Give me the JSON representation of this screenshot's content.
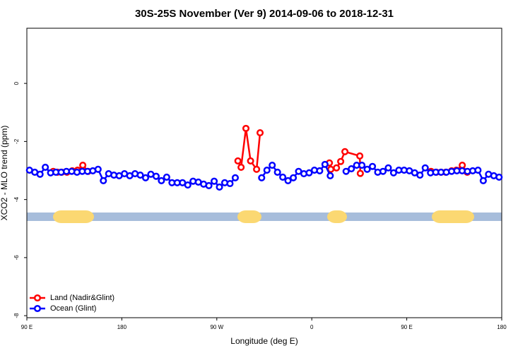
{
  "chart_data": {
    "type": "line",
    "title": "30S-25S November (Ver 9)   2014-09-06 to 2018-12-31",
    "xlabel": "Longitude (deg E)",
    "ylabel": "XCO2 - MLO trend (ppm)",
    "xlim": [
      90,
      540
    ],
    "xticks": [
      {
        "value": 90,
        "label": "90 E"
      },
      180,
      {
        "value": 270,
        "label": "90 W"
      },
      {
        "value": 360,
        "label": "0"
      },
      {
        "value": 450,
        "label": "90 E"
      },
      {
        "value": 540,
        "label": "180"
      }
    ],
    "ylim": [
      -8.07,
      1.9
    ],
    "yticks": [
      -8,
      -6,
      -4,
      -2,
      0
    ],
    "legend": "bottom-left",
    "series": [
      {
        "name": "Land (Nadir&Glint)",
        "color": "#ff0000",
        "x": [
          115,
          119,
          123,
          128,
          133,
          138,
          143,
          148,
          220,
          290,
          293,
          297.6,
          302,
          307.7,
          311,
          340,
          376.7,
          378,
          383.4,
          387.4,
          391.4,
          405.5,
          406,
          440,
          473,
          478,
          482.5,
          487,
          492.5,
          497,
          502.6,
          507.3
        ],
        "values": [
          -3.03,
          -3.06,
          -3.06,
          -3.06,
          -3.01,
          -2.99,
          -2.82,
          -3.03,
          null,
          -2.67,
          -2.89,
          -1.55,
          -2.67,
          -2.96,
          -1.7,
          null,
          -2.74,
          -2.96,
          -2.91,
          -2.69,
          -2.35,
          -2.5,
          -3.1,
          null,
          -3.03,
          -3.06,
          -3.06,
          -3.06,
          -3.01,
          -2.99,
          -2.82,
          -3.06
        ]
      },
      {
        "name": "Ocean (Glint)",
        "color": "#0000ff",
        "x": [
          92.5,
          97.5,
          102.5,
          107.5,
          112.5,
          117.5,
          122.5,
          127.5,
          132.5,
          137.5,
          142.5,
          147.5,
          152.5,
          157.5,
          162.5,
          167.5,
          172.5,
          177.5,
          182.5,
          187.5,
          192.5,
          197.5,
          202.5,
          207.5,
          212.5,
          217.5,
          222.5,
          227.5,
          232.5,
          237.5,
          242.5,
          247.5,
          252.5,
          257.5,
          262.5,
          267.5,
          272.5,
          277.5,
          282.5,
          287.5,
          292.5,
          297.5,
          302.5,
          307.5,
          312.5,
          317.5,
          322.5,
          327.5,
          332.5,
          337.5,
          342.5,
          347.5,
          352.5,
          357.5,
          362.5,
          367.5,
          372.5,
          377.5,
          382.5,
          387.5,
          392.5,
          397.5,
          402.5,
          407.5,
          412.5,
          417.5,
          422.5,
          427.5,
          432.5,
          437.5,
          442.5,
          447.5,
          452.5,
          457.5,
          462.5,
          467.5,
          472.5,
          477.5,
          482.5,
          487.5,
          492.5,
          497.5,
          502.5,
          507.5,
          512.5,
          517.5,
          522.5,
          527.5,
          532.5,
          537.5
        ],
        "values": [
          -2.99,
          -3.06,
          -3.13,
          -2.89,
          -3.08,
          -3.06,
          -3.06,
          -3.03,
          -3.03,
          -3.06,
          -3.03,
          -3.03,
          -3.01,
          -2.96,
          -3.35,
          -3.11,
          -3.16,
          -3.18,
          -3.11,
          -3.18,
          -3.11,
          -3.16,
          -3.25,
          -3.13,
          -3.2,
          -3.35,
          -3.23,
          -3.42,
          -3.42,
          -3.42,
          -3.5,
          -3.37,
          -3.4,
          -3.47,
          -3.52,
          -3.37,
          -3.57,
          -3.42,
          -3.45,
          -3.25,
          null,
          null,
          null,
          null,
          -3.25,
          -2.99,
          -2.82,
          -3.06,
          -3.23,
          -3.35,
          -3.25,
          -3.03,
          -3.11,
          -3.08,
          -2.99,
          -3.01,
          -2.79,
          -3.18,
          null,
          null,
          -3.03,
          -2.94,
          -2.82,
          -2.82,
          -2.96,
          -2.86,
          -3.06,
          -3.03,
          -2.91,
          -3.08,
          -2.99,
          -2.99,
          -3.01,
          -3.08,
          -3.16,
          -2.91,
          -3.08,
          -3.06,
          -3.06,
          -3.06,
          -3.03,
          -3.01,
          -3.01,
          -3.03,
          -3.01,
          -2.99,
          -3.35,
          -3.13,
          -3.18,
          -3.23
        ]
      }
    ]
  }
}
